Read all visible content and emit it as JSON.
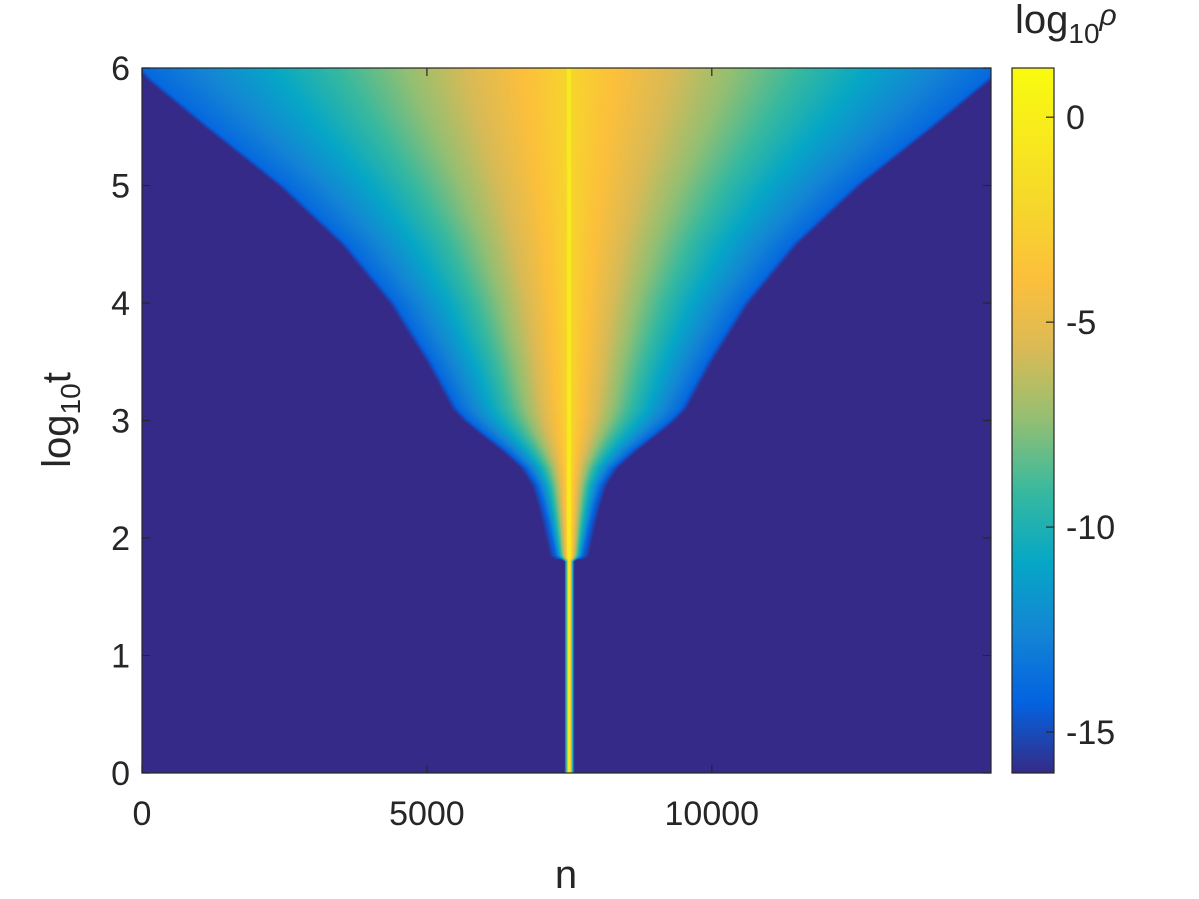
{
  "chart_data": {
    "type": "heatmap",
    "title": "",
    "xlabel": "n",
    "ylabel_base": "log",
    "ylabel_sub": "10",
    "ylabel_var": "t",
    "xlim": [
      0,
      14900
    ],
    "ylim": [
      0,
      6
    ],
    "x_ticks": [
      0,
      5000,
      10000
    ],
    "x_tick_labels": [
      "0",
      "5000",
      "10000"
    ],
    "y_ticks": [
      0,
      1,
      2,
      3,
      4,
      5,
      6
    ],
    "y_tick_labels": [
      "0",
      "1",
      "2",
      "3",
      "4",
      "5",
      "6"
    ],
    "colorbar": {
      "label_base": "log",
      "label_sub": "10",
      "label_var": "ρ",
      "clim": [
        -16,
        1.2
      ],
      "ticks": [
        0,
        -5,
        -10,
        -15
      ],
      "tick_labels": [
        "0",
        "-5",
        "-10",
        "-15"
      ],
      "colormap": "parula"
    },
    "center_n": 7500,
    "front_half_width": {
      "log10_t": [
        0,
        1.8,
        1.85,
        2.0,
        2.15,
        2.3,
        2.45,
        2.6,
        2.75,
        2.9,
        3.0,
        3.1,
        3.5,
        4.0,
        4.5,
        5.0,
        5.5,
        5.9,
        6.0
      ],
      "n_half_width": [
        80,
        80,
        230,
        300,
        370,
        450,
        550,
        750,
        1100,
        1500,
        1750,
        1950,
        2400,
        3050,
        3900,
        5000,
        6300,
        7300,
        7500
      ]
    },
    "peak_log10_rho": 0,
    "background_log10_rho": -16,
    "grid": false,
    "legend": "none"
  }
}
